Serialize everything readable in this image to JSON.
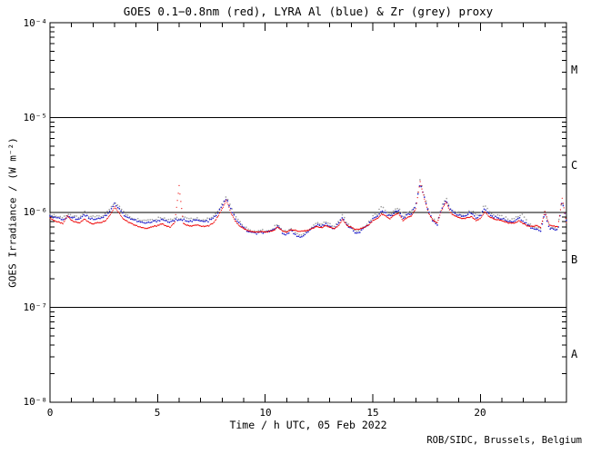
{
  "credit": "ROB/SIDC, Brussels, Belgium",
  "chart_data": {
    "type": "scatter",
    "title": "GOES 0.1−0.8nm (red), LYRA Al (blue) & Zr (grey) proxy",
    "xlabel": "Time / h UTC, 05 Feb 2022",
    "ylabel": "GOES Irradiance / (W m⁻²)",
    "x_axis": {
      "min": 0,
      "max": 24,
      "major_ticks": [
        0,
        5,
        10,
        15,
        20
      ],
      "minor_step": 1
    },
    "y_axis": {
      "scale": "log",
      "min_exp": -8,
      "max_exp": -4,
      "tick_labels": [
        "10⁻⁴",
        "10⁻⁵",
        "10⁻⁶",
        "10⁻⁷",
        "10⁻⁸"
      ]
    },
    "reference_lines": [
      1e-05,
      1e-06,
      1e-07
    ],
    "flare_classes": [
      {
        "label": "M",
        "center_exp": -4.5
      },
      {
        "label": "C",
        "center_exp": -5.5
      },
      {
        "label": "B",
        "center_exp": -6.5
      },
      {
        "label": "A",
        "center_exp": -7.5
      }
    ],
    "grid": false,
    "unit_scale": 1e-07,
    "x_start": 0,
    "x_step": 0.2,
    "colors": {
      "red": "#ee0000",
      "blue": "#2222cc",
      "grey": "#a0a0a0",
      "axis": "#000000"
    },
    "series": [
      {
        "name": "GOES 0.1-0.8nm",
        "color_key": "red",
        "values": [
          8.8,
          8.2,
          7.9,
          7.6,
          9.2,
          8.3,
          7.9,
          7.8,
          8.5,
          7.9,
          7.6,
          7.8,
          7.9,
          8.3,
          9.5,
          11.5,
          10.0,
          8.6,
          8.0,
          7.6,
          7.3,
          7.0,
          6.8,
          6.9,
          7.1,
          7.3,
          7.6,
          7.2,
          7.0,
          7.9,
          19.0,
          7.6,
          7.3,
          7.2,
          7.4,
          7.2,
          7.1,
          7.3,
          7.8,
          9.0,
          11.0,
          13.5,
          10.0,
          8.2,
          7.2,
          6.8,
          6.4,
          6.3,
          6.2,
          6.3,
          6.2,
          6.3,
          6.5,
          7.0,
          6.4,
          6.2,
          6.6,
          6.5,
          6.3,
          6.4,
          6.5,
          6.8,
          7.1,
          6.9,
          7.2,
          7.0,
          6.7,
          7.2,
          8.4,
          7.3,
          7.0,
          6.6,
          6.7,
          7.0,
          7.3,
          8.2,
          8.6,
          9.6,
          9.2,
          8.6,
          9.4,
          9.8,
          8.2,
          8.8,
          9.2,
          11.0,
          21.0,
          14.0,
          9.8,
          8.2,
          7.8,
          10.5,
          13.0,
          10.0,
          9.2,
          8.8,
          8.6,
          8.8,
          9.0,
          8.2,
          8.6,
          10.2,
          9.0,
          8.6,
          8.4,
          8.2,
          7.9,
          7.7,
          7.8,
          8.2,
          7.6,
          7.2,
          7.1,
          7.3,
          7.0,
          10.2,
          7.4,
          7.2,
          7.0,
          14.0,
          7.8
        ]
      },
      {
        "name": "LYRA Al proxy",
        "color_key": "blue",
        "values": [
          9.4,
          8.9,
          8.6,
          8.4,
          9.0,
          8.9,
          8.6,
          8.6,
          9.6,
          8.8,
          8.5,
          8.7,
          8.8,
          9.3,
          10.6,
          12.4,
          11.0,
          9.6,
          8.9,
          8.5,
          8.2,
          7.9,
          7.7,
          7.8,
          8.0,
          8.2,
          8.5,
          8.1,
          7.9,
          8.4,
          8.2,
          8.4,
          8.2,
          8.1,
          8.3,
          8.1,
          8.0,
          8.2,
          8.7,
          9.8,
          11.8,
          14.2,
          10.8,
          8.8,
          7.6,
          6.9,
          6.3,
          6.1,
          6.0,
          6.2,
          6.1,
          6.2,
          6.6,
          7.3,
          6.1,
          5.9,
          6.5,
          5.8,
          5.5,
          5.8,
          6.2,
          6.9,
          7.4,
          7.1,
          7.6,
          7.2,
          6.8,
          7.5,
          9.0,
          7.4,
          6.8,
          6.0,
          6.2,
          6.8,
          7.4,
          8.6,
          9.2,
          10.4,
          9.8,
          9.0,
          10.0,
          10.6,
          8.6,
          9.4,
          9.8,
          11.8,
          20.5,
          14.5,
          10.2,
          8.0,
          7.5,
          11.0,
          13.8,
          10.6,
          9.8,
          9.4,
          9.0,
          9.6,
          10.0,
          8.8,
          9.2,
          11.2,
          9.6,
          9.0,
          8.8,
          8.6,
          8.3,
          8.0,
          8.2,
          8.8,
          8.0,
          7.4,
          6.8,
          6.6,
          6.4,
          10.0,
          6.9,
          6.6,
          6.4,
          13.5,
          8.2
        ]
      },
      {
        "name": "LYRA Zr proxy",
        "color_key": "grey",
        "values": [
          9.8,
          9.3,
          9.0,
          8.8,
          9.4,
          9.3,
          9.0,
          9.0,
          10.1,
          9.2,
          8.9,
          9.1,
          9.2,
          9.8,
          11.1,
          13.0,
          11.6,
          10.1,
          9.3,
          8.9,
          8.6,
          8.3,
          8.1,
          8.2,
          8.4,
          8.6,
          8.9,
          8.5,
          8.3,
          8.8,
          8.6,
          8.8,
          8.6,
          8.5,
          8.7,
          8.5,
          8.4,
          8.6,
          9.1,
          10.3,
          12.4,
          15.2,
          11.3,
          9.2,
          8.0,
          7.2,
          6.6,
          6.4,
          6.3,
          6.5,
          6.4,
          6.5,
          6.9,
          7.7,
          6.4,
          6.2,
          6.8,
          6.1,
          5.8,
          6.1,
          6.5,
          7.2,
          7.8,
          7.5,
          8.0,
          7.6,
          7.1,
          7.9,
          9.5,
          7.8,
          7.1,
          6.3,
          6.5,
          7.1,
          7.8,
          9.0,
          9.7,
          11.5,
          10.3,
          9.5,
          10.5,
          11.6,
          9.0,
          9.9,
          10.3,
          12.4,
          22.0,
          15.2,
          10.7,
          8.4,
          7.9,
          11.6,
          14.5,
          11.1,
          10.3,
          9.9,
          9.5,
          10.1,
          10.5,
          9.2,
          9.7,
          12.0,
          10.1,
          9.5,
          9.2,
          9.0,
          8.7,
          8.4,
          8.6,
          9.2,
          9.5,
          7.8,
          7.1,
          6.9,
          6.7,
          10.5,
          7.2,
          6.9,
          6.7,
          14.2,
          8.6
        ]
      }
    ]
  }
}
